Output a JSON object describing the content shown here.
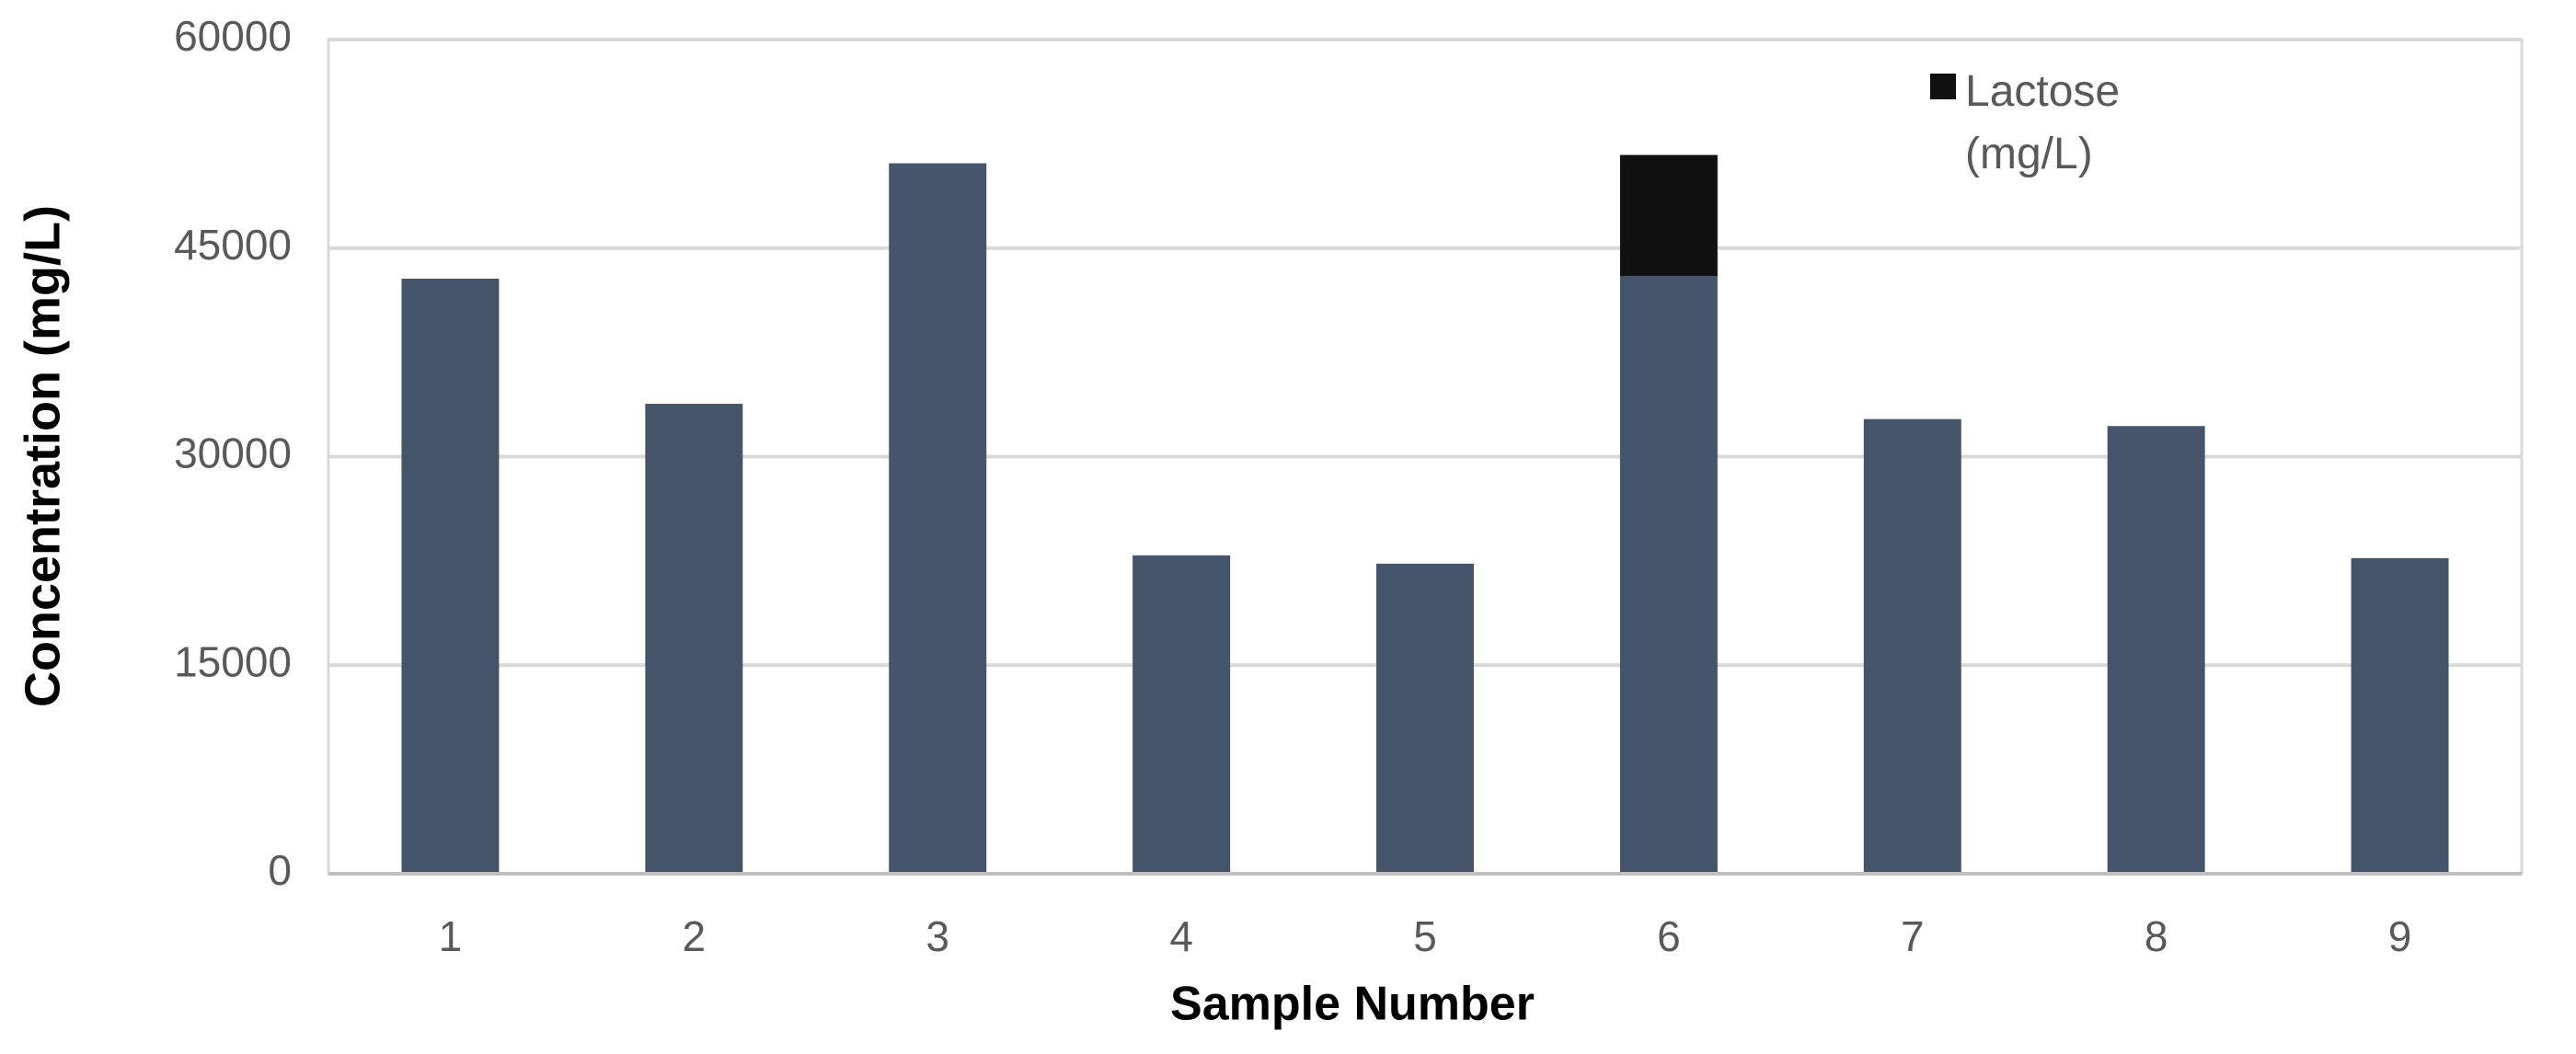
{
  "chart_data": {
    "type": "stacked-bar",
    "x_label": "Sample Number",
    "y_label": "Concentration (mg/L)",
    "categories": [
      "1",
      "2",
      "3",
      "4",
      "5",
      "6",
      "7",
      "8",
      "9"
    ],
    "series": [
      {
        "color": "#44546a",
        "values": [
          42800,
          33800,
          51100,
          22900,
          22300,
          43000,
          32700,
          32200,
          22700
        ]
      },
      {
        "name": "Lactose (mg/L)",
        "color": "#111111",
        "values": [
          null,
          null,
          null,
          null,
          null,
          8700,
          null,
          null,
          null
        ]
      }
    ],
    "ylim": [
      0,
      60000
    ],
    "yticks": [
      0,
      15000,
      30000,
      45000,
      60000
    ],
    "grid": true,
    "legend": "top-right"
  }
}
